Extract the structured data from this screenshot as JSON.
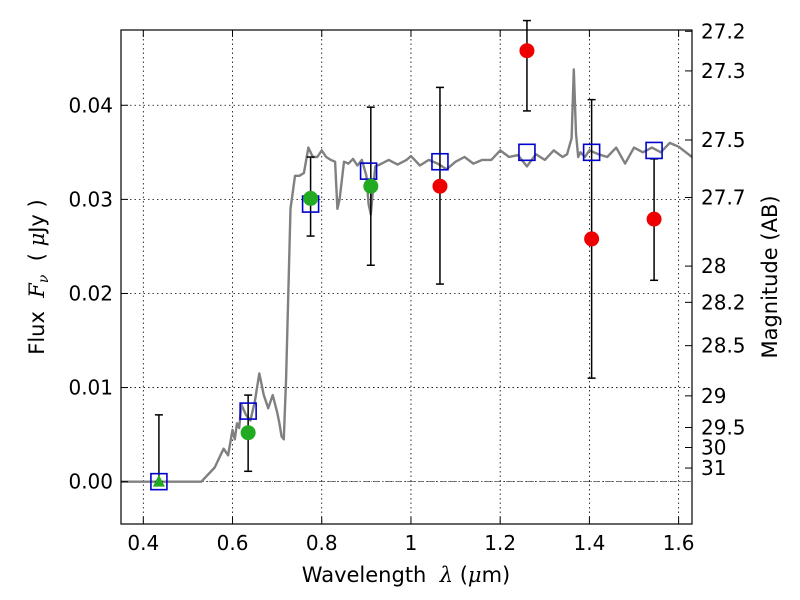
{
  "chart_data": {
    "type": "scatter",
    "xlabel": {
      "pre": "Wavelength  ",
      "sym": "λ",
      "post": " (",
      "mu": "μ",
      "unit": "m)"
    },
    "ylabel": {
      "pre": "Flux  ",
      "sym": "F",
      "sub": "ν",
      "post": "  ( ",
      "mu": "μ",
      "unit": "Jy )"
    },
    "y2label": "Magnitude (AB)",
    "xlim": [
      0.35,
      1.63
    ],
    "ylim": [
      -0.0045,
      0.048
    ],
    "xticks": [
      0.4,
      0.6,
      0.8,
      1.0,
      1.2,
      1.4,
      1.6
    ],
    "xtick_labels": [
      "0.4",
      "0.6",
      "0.8",
      "1",
      "1.2",
      "1.4",
      "1.6"
    ],
    "yticks": [
      0.0,
      0.01,
      0.02,
      0.03,
      0.04
    ],
    "ytick_labels": [
      "0.00",
      "0.01",
      "0.02",
      "0.03",
      "0.04"
    ],
    "magnitude_ticks": [
      27.2,
      27.3,
      27.5,
      27.7,
      28,
      28.2,
      28.5,
      29,
      29.5,
      30,
      31
    ],
    "magnitude_tick_labels": [
      "27.2",
      "27.3",
      "27.5",
      "27.7",
      "28",
      "28.2",
      "28.5",
      "29",
      "29.5",
      "30",
      "31"
    ],
    "grid": true,
    "colors": {
      "model": "#808080",
      "model_points": "#0000cc",
      "detections": "#22aa22",
      "low_sn": "#ee0000",
      "errorbar": "#000000"
    },
    "model_spectrum": {
      "x": [
        0.35,
        0.53,
        0.56,
        0.58,
        0.59,
        0.6,
        0.605,
        0.61,
        0.615,
        0.62,
        0.63,
        0.64,
        0.65,
        0.66,
        0.67,
        0.68,
        0.69,
        0.7,
        0.705,
        0.71,
        0.715,
        0.72,
        0.73,
        0.74,
        0.75,
        0.76,
        0.77,
        0.78,
        0.79,
        0.8,
        0.81,
        0.82,
        0.83,
        0.835,
        0.84,
        0.85,
        0.86,
        0.87,
        0.88,
        0.89,
        0.9,
        0.905,
        0.91,
        0.915,
        0.92,
        0.93,
        0.95,
        0.97,
        0.99,
        1.0,
        1.02,
        1.04,
        1.06,
        1.08,
        1.1,
        1.12,
        1.14,
        1.16,
        1.18,
        1.2,
        1.22,
        1.24,
        1.26,
        1.28,
        1.3,
        1.32,
        1.34,
        1.35,
        1.36,
        1.365,
        1.37,
        1.375,
        1.38,
        1.39,
        1.4,
        1.42,
        1.44,
        1.46,
        1.48,
        1.5,
        1.52,
        1.54,
        1.56,
        1.58,
        1.6,
        1.63
      ],
      "y": [
        0.0,
        0.0,
        0.0015,
        0.0035,
        0.0028,
        0.0055,
        0.0045,
        0.0062,
        0.0057,
        0.0082,
        0.0071,
        0.0065,
        0.0085,
        0.0115,
        0.0092,
        0.0078,
        0.0092,
        0.0074,
        0.0062,
        0.0048,
        0.0045,
        0.011,
        0.029,
        0.0325,
        0.0325,
        0.0328,
        0.0355,
        0.0345,
        0.0345,
        0.0352,
        0.0345,
        0.0342,
        0.034,
        0.029,
        0.03,
        0.034,
        0.0338,
        0.0343,
        0.0336,
        0.0342,
        0.0325,
        0.0295,
        0.0284,
        0.031,
        0.0335,
        0.0337,
        0.0342,
        0.0337,
        0.0342,
        0.0346,
        0.0336,
        0.0342,
        0.0338,
        0.0332,
        0.034,
        0.0345,
        0.0338,
        0.0342,
        0.0342,
        0.0352,
        0.0345,
        0.0347,
        0.0335,
        0.0348,
        0.0342,
        0.0352,
        0.0345,
        0.0348,
        0.0365,
        0.0438,
        0.037,
        0.0345,
        0.035,
        0.0345,
        0.0352,
        0.0348,
        0.0345,
        0.0355,
        0.0338,
        0.0355,
        0.035,
        0.0355,
        0.035,
        0.036,
        0.0356,
        0.0345
      ]
    },
    "model_points": {
      "x": [
        0.435,
        0.635,
        0.775,
        0.905,
        1.065,
        1.26,
        1.405,
        1.545
      ],
      "y": [
        0.0,
        0.0075,
        0.0295,
        0.033,
        0.034,
        0.035,
        0.035,
        0.0352
      ]
    },
    "detections": {
      "marker": "circle",
      "x": [
        0.635,
        0.775,
        0.91
      ],
      "y": [
        0.0052,
        0.0301,
        0.0314
      ],
      "err_low": [
        0.0011,
        0.0261,
        0.023
      ],
      "err_high": [
        0.0092,
        0.0345,
        0.0398
      ]
    },
    "upper_limit": {
      "marker": "triangle",
      "x": [
        0.435
      ],
      "y": [
        0.0
      ],
      "err_low": [
        0.0
      ],
      "err_high": [
        0.0071
      ]
    },
    "low_sn": {
      "marker": "circle",
      "x": [
        1.065,
        1.26,
        1.405,
        1.545
      ],
      "y": [
        0.0314,
        0.0458,
        0.0258,
        0.0279
      ],
      "err_low": [
        0.021,
        0.0394,
        0.011,
        0.0214
      ],
      "err_high": [
        0.0419,
        0.049,
        0.0406,
        0.0343
      ]
    }
  }
}
